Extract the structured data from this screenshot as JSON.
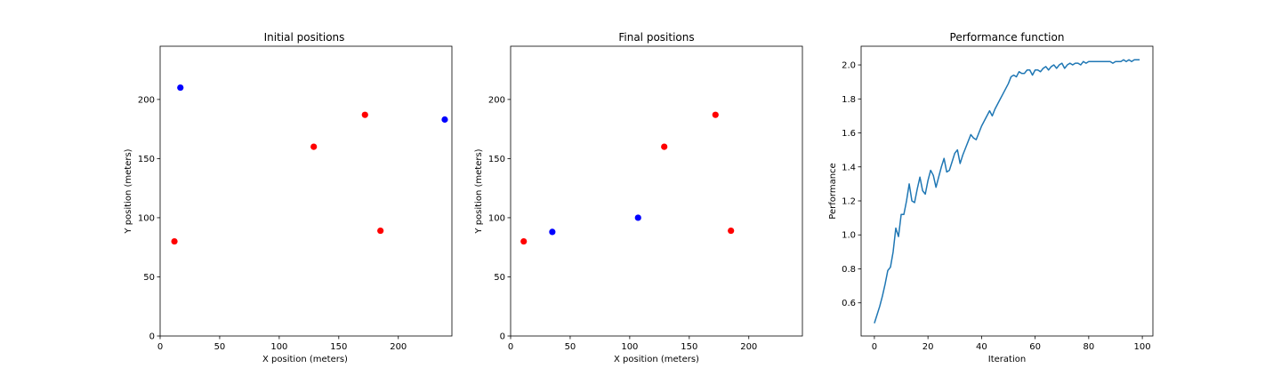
{
  "chart_data": [
    {
      "type": "scatter",
      "title": "Initial positions",
      "xlabel": "X position (meters)",
      "ylabel": "Y position (meters)",
      "xlim": [
        0,
        245
      ],
      "ylim": [
        0,
        245
      ],
      "xticks": [
        0,
        50,
        100,
        150,
        200
      ],
      "yticks": [
        0,
        50,
        100,
        150,
        200
      ],
      "grid": false,
      "series": [
        {
          "color": "#ff0000",
          "points": [
            [
              12,
              80
            ],
            [
              129,
              160
            ],
            [
              172,
              187
            ],
            [
              185,
              89
            ]
          ]
        },
        {
          "color": "#0000ff",
          "points": [
            [
              17,
              210
            ],
            [
              239,
              183
            ]
          ]
        }
      ]
    },
    {
      "type": "scatter",
      "title": "Final positions",
      "xlabel": "X position (meters)",
      "ylabel": "Y position (meters)",
      "xlim": [
        0,
        245
      ],
      "ylim": [
        0,
        245
      ],
      "xticks": [
        0,
        50,
        100,
        150,
        200
      ],
      "yticks": [
        0,
        50,
        100,
        150,
        200
      ],
      "grid": false,
      "series": [
        {
          "color": "#ff0000",
          "points": [
            [
              11,
              80
            ],
            [
              129,
              160
            ],
            [
              172,
              187
            ],
            [
              185,
              89
            ]
          ]
        },
        {
          "color": "#0000ff",
          "points": [
            [
              35,
              88
            ],
            [
              107,
              100
            ]
          ]
        }
      ]
    },
    {
      "type": "line",
      "title": "Performance function",
      "xlabel": "Iteration",
      "ylabel": "Performance",
      "xlim": [
        -4.95,
        103.95
      ],
      "ylim": [
        0.405,
        2.11
      ],
      "xticks": [
        0,
        20,
        40,
        60,
        80,
        100
      ],
      "yticks": [
        0.6,
        0.8,
        1.0,
        1.2,
        1.4,
        1.6,
        1.8,
        2.0
      ],
      "grid": false,
      "series": [
        {
          "color": "#1f77b4",
          "x": [
            0,
            1,
            2,
            3,
            4,
            5,
            6,
            7,
            8,
            9,
            10,
            11,
            12,
            13,
            14,
            15,
            16,
            17,
            18,
            19,
            20,
            21,
            22,
            23,
            24,
            25,
            26,
            27,
            28,
            29,
            30,
            31,
            32,
            33,
            34,
            35,
            36,
            37,
            38,
            39,
            40,
            41,
            42,
            43,
            44,
            45,
            46,
            47,
            48,
            49,
            50,
            51,
            52,
            53,
            54,
            55,
            56,
            57,
            58,
            59,
            60,
            61,
            62,
            63,
            64,
            65,
            66,
            67,
            68,
            69,
            70,
            71,
            72,
            73,
            74,
            75,
            76,
            77,
            78,
            79,
            80,
            81,
            82,
            83,
            84,
            85,
            86,
            87,
            88,
            89,
            90,
            91,
            92,
            93,
            94,
            95,
            96,
            97,
            98,
            99
          ],
          "y": [
            0.48,
            0.53,
            0.58,
            0.64,
            0.71,
            0.79,
            0.81,
            0.9,
            1.04,
            0.99,
            1.12,
            1.12,
            1.2,
            1.3,
            1.2,
            1.19,
            1.27,
            1.34,
            1.26,
            1.24,
            1.32,
            1.38,
            1.35,
            1.28,
            1.34,
            1.4,
            1.45,
            1.37,
            1.38,
            1.43,
            1.48,
            1.5,
            1.42,
            1.47,
            1.51,
            1.55,
            1.59,
            1.57,
            1.56,
            1.6,
            1.64,
            1.67,
            1.7,
            1.73,
            1.7,
            1.74,
            1.77,
            1.8,
            1.83,
            1.86,
            1.89,
            1.93,
            1.94,
            1.93,
            1.96,
            1.95,
            1.95,
            1.97,
            1.97,
            1.94,
            1.97,
            1.97,
            1.96,
            1.98,
            1.99,
            1.97,
            1.99,
            2.0,
            1.98,
            2.0,
            2.01,
            1.98,
            2.0,
            2.01,
            2.0,
            2.01,
            2.01,
            2.0,
            2.02,
            2.01,
            2.02,
            2.02,
            2.02,
            2.02,
            2.02,
            2.02,
            2.02,
            2.02,
            2.02,
            2.01,
            2.02,
            2.02,
            2.02,
            2.03,
            2.02,
            2.03,
            2.02,
            2.03,
            2.03,
            2.03
          ]
        }
      ]
    }
  ]
}
